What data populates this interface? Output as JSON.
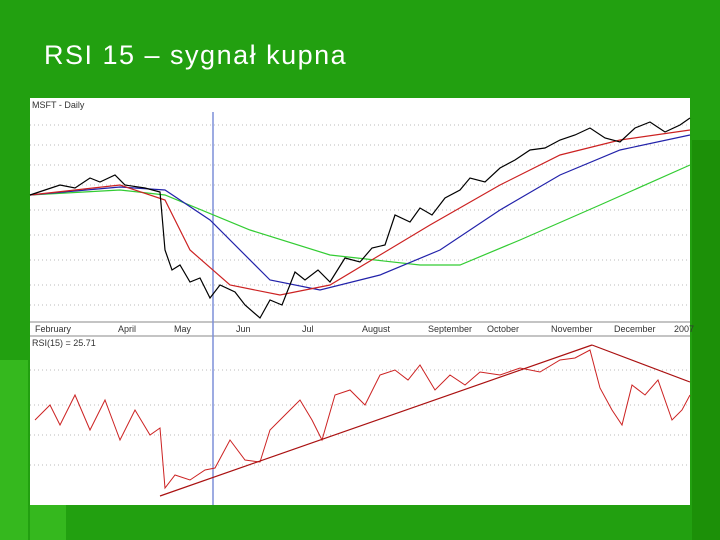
{
  "title": "RSI 15 – sygnał kupna",
  "screenshot": {
    "price_header": "MSFT - Daily",
    "rsi_header": "RSI(15) = 25.71",
    "months": [
      "February",
      "April",
      "May",
      "Jun",
      "Jul",
      "August",
      "September",
      "October",
      "November",
      "December",
      "2007"
    ]
  }
}
